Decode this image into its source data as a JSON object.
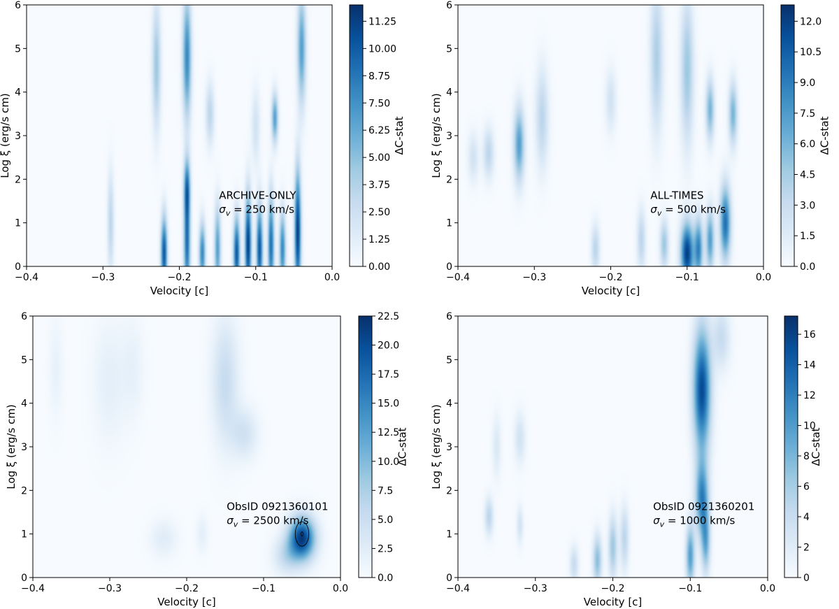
{
  "chart_data": [
    {
      "type": "heatmap",
      "panel": "top-left",
      "xlabel": "Velocity [c]",
      "ylabel": "Log ξ (erg/s cm)",
      "xlim": [
        -0.4,
        0.0
      ],
      "ylim": [
        0,
        6
      ],
      "xticks": [
        "−0.4",
        "−0.3",
        "−0.2",
        "−0.1",
        "0.0"
      ],
      "yticks": [
        "0",
        "1",
        "2",
        "3",
        "4",
        "5",
        "6"
      ],
      "annotation": {
        "line1": "ARCHIVE-ONLY",
        "line2_prefix": "σ",
        "line2_sub": "v",
        "line2_rest": " = 250 km/s"
      },
      "colorbar": {
        "label": "ΔC-stat",
        "min": 0.0,
        "max": 12.0,
        "ticks": [
          "0.00",
          "1.25",
          "2.50",
          "3.75",
          "5.00",
          "6.25",
          "7.50",
          "8.75",
          "10.00",
          "11.25"
        ]
      },
      "features": [
        {
          "v": -0.22,
          "logxi": 0.3,
          "dv": 0.003,
          "dxi": 0.6,
          "amp": 0.9
        },
        {
          "v": -0.19,
          "logxi": 0.5,
          "dv": 0.003,
          "dxi": 0.8,
          "amp": 0.8
        },
        {
          "v": -0.17,
          "logxi": 0.3,
          "dv": 0.003,
          "dxi": 0.5,
          "amp": 0.7
        },
        {
          "v": -0.15,
          "logxi": 0.4,
          "dv": 0.003,
          "dxi": 0.7,
          "amp": 0.6
        },
        {
          "v": -0.125,
          "logxi": 0.3,
          "dv": 0.003,
          "dxi": 0.6,
          "amp": 0.9
        },
        {
          "v": -0.11,
          "logxi": 0.5,
          "dv": 0.003,
          "dxi": 0.8,
          "amp": 1.0
        },
        {
          "v": -0.095,
          "logxi": 0.4,
          "dv": 0.003,
          "dxi": 0.7,
          "amp": 0.9
        },
        {
          "v": -0.08,
          "logxi": 0.5,
          "dv": 0.003,
          "dxi": 0.8,
          "amp": 0.8
        },
        {
          "v": -0.065,
          "logxi": 0.4,
          "dv": 0.003,
          "dxi": 0.6,
          "amp": 0.7
        },
        {
          "v": -0.045,
          "logxi": 0.8,
          "dv": 0.003,
          "dxi": 1.0,
          "amp": 1.0
        },
        {
          "v": -0.19,
          "logxi": 1.8,
          "dv": 0.003,
          "dxi": 0.5,
          "amp": 0.7
        },
        {
          "v": -0.19,
          "logxi": 4.8,
          "dv": 0.004,
          "dxi": 1.0,
          "amp": 0.7
        },
        {
          "v": -0.23,
          "logxi": 4.6,
          "dv": 0.004,
          "dxi": 1.0,
          "amp": 0.4
        },
        {
          "v": -0.075,
          "logxi": 3.4,
          "dv": 0.003,
          "dxi": 0.4,
          "amp": 0.6
        },
        {
          "v": -0.04,
          "logxi": 5.0,
          "dv": 0.004,
          "dxi": 0.9,
          "amp": 0.6
        },
        {
          "v": -0.16,
          "logxi": 3.5,
          "dv": 0.004,
          "dxi": 0.5,
          "amp": 0.3
        },
        {
          "v": -0.29,
          "logxi": 1.0,
          "dv": 0.003,
          "dxi": 0.8,
          "amp": 0.3
        },
        {
          "v": -0.1,
          "logxi": 3.2,
          "dv": 0.004,
          "dxi": 0.6,
          "amp": 0.2
        }
      ]
    },
    {
      "type": "heatmap",
      "panel": "top-right",
      "xlabel": "Velocity [c]",
      "ylabel": "Log ξ (erg/s cm)",
      "xlim": [
        -0.4,
        0.0
      ],
      "ylim": [
        0,
        6
      ],
      "xticks": [
        "−0.4",
        "−0.3",
        "−0.2",
        "−0.1",
        "0.0"
      ],
      "yticks": [
        "0",
        "1",
        "2",
        "3",
        "4",
        "5",
        "6"
      ],
      "annotation": {
        "line1": "ALL-TIMES",
        "line2_prefix": "σ",
        "line2_sub": "v",
        "line2_rest": " = 500 km/s"
      },
      "colorbar": {
        "label": "ΔC-stat",
        "min": 0.0,
        "max": 12.8,
        "ticks": [
          "0.0",
          "1.5",
          "3.0",
          "4.5",
          "6.0",
          "7.5",
          "9.0",
          "10.5",
          "12.0"
        ]
      },
      "features": [
        {
          "v": -0.1,
          "logxi": 0.3,
          "dv": 0.006,
          "dxi": 0.5,
          "amp": 1.0
        },
        {
          "v": -0.085,
          "logxi": 0.4,
          "dv": 0.004,
          "dxi": 0.5,
          "amp": 0.7
        },
        {
          "v": -0.07,
          "logxi": 0.6,
          "dv": 0.004,
          "dxi": 0.5,
          "amp": 0.6
        },
        {
          "v": -0.05,
          "logxi": 1.0,
          "dv": 0.005,
          "dxi": 0.6,
          "amp": 0.8
        },
        {
          "v": -0.13,
          "logxi": 0.5,
          "dv": 0.004,
          "dxi": 0.4,
          "amp": 0.4
        },
        {
          "v": -0.16,
          "logxi": 0.6,
          "dv": 0.004,
          "dxi": 0.5,
          "amp": 0.3
        },
        {
          "v": -0.22,
          "logxi": 0.4,
          "dv": 0.004,
          "dxi": 0.4,
          "amp": 0.3
        },
        {
          "v": -0.32,
          "logxi": 2.8,
          "dv": 0.005,
          "dxi": 0.6,
          "amp": 0.6
        },
        {
          "v": -0.36,
          "logxi": 2.6,
          "dv": 0.005,
          "dxi": 0.4,
          "amp": 0.3
        },
        {
          "v": -0.38,
          "logxi": 2.5,
          "dv": 0.005,
          "dxi": 0.4,
          "amp": 0.2
        },
        {
          "v": -0.29,
          "logxi": 3.4,
          "dv": 0.006,
          "dxi": 0.8,
          "amp": 0.3
        },
        {
          "v": -0.14,
          "logxi": 4.8,
          "dv": 0.006,
          "dxi": 1.2,
          "amp": 0.35
        },
        {
          "v": -0.1,
          "logxi": 4.5,
          "dv": 0.006,
          "dxi": 1.2,
          "amp": 0.4
        },
        {
          "v": -0.07,
          "logxi": 3.6,
          "dv": 0.004,
          "dxi": 0.5,
          "amp": 0.5
        },
        {
          "v": -0.04,
          "logxi": 3.5,
          "dv": 0.004,
          "dxi": 0.5,
          "amp": 0.5
        },
        {
          "v": -0.2,
          "logxi": 3.8,
          "dv": 0.005,
          "dxi": 0.5,
          "amp": 0.2
        }
      ]
    },
    {
      "type": "heatmap",
      "panel": "bottom-left",
      "xlabel": "Velocity [c]",
      "ylabel": "Log ξ (erg/s cm)",
      "xlim": [
        -0.4,
        0.0
      ],
      "ylim": [
        0,
        6
      ],
      "xticks": [
        "−0.4",
        "−0.3",
        "−0.2",
        "−0.1",
        "0.0"
      ],
      "yticks": [
        "0",
        "1",
        "2",
        "3",
        "4",
        "5",
        "6"
      ],
      "annotation": {
        "line1": "ObsID 0921360101",
        "line2_prefix": "σ",
        "line2_sub": "v",
        "line2_rest": " = 2500 km/s"
      },
      "colorbar": {
        "label": "ΔC-stat",
        "min": 0.0,
        "max": 22.5,
        "ticks": [
          "0.0",
          "2.5",
          "5.0",
          "7.5",
          "10.0",
          "12.5",
          "15.0",
          "17.5",
          "20.0",
          "22.5"
        ]
      },
      "contour": {
        "v": -0.05,
        "logxi": 1.0,
        "rv": 0.004,
        "rxi": 0.28
      },
      "features": [
        {
          "v": -0.05,
          "logxi": 0.9,
          "dv": 0.012,
          "dxi": 0.35,
          "amp": 1.0
        },
        {
          "v": -0.07,
          "logxi": 0.5,
          "dv": 0.012,
          "dxi": 0.3,
          "amp": 0.25
        },
        {
          "v": -0.15,
          "logxi": 4.5,
          "dv": 0.012,
          "dxi": 1.0,
          "amp": 0.25
        },
        {
          "v": -0.125,
          "logxi": 3.3,
          "dv": 0.012,
          "dxi": 0.4,
          "amp": 0.2
        },
        {
          "v": -0.3,
          "logxi": 4.5,
          "dv": 0.015,
          "dxi": 1.0,
          "amp": 0.1
        },
        {
          "v": -0.37,
          "logxi": 4.8,
          "dv": 0.006,
          "dxi": 0.8,
          "amp": 0.08
        },
        {
          "v": -0.23,
          "logxi": 0.9,
          "dv": 0.012,
          "dxi": 0.3,
          "amp": 0.12
        },
        {
          "v": -0.18,
          "logxi": 1.0,
          "dv": 0.005,
          "dxi": 0.3,
          "amp": 0.1
        },
        {
          "v": -0.27,
          "logxi": 4.8,
          "dv": 0.01,
          "dxi": 0.8,
          "amp": 0.08
        }
      ]
    },
    {
      "type": "heatmap",
      "panel": "bottom-right",
      "xlabel": "Velocity [c]",
      "ylabel": "Log ξ (erg/s cm)",
      "xlim": [
        -0.4,
        0.0
      ],
      "ylim": [
        0,
        6
      ],
      "xticks": [
        "−0.4",
        "−0.3",
        "−0.2",
        "−0.1",
        "0.0"
      ],
      "yticks": [
        "0",
        "1",
        "2",
        "3",
        "4",
        "5",
        "6"
      ],
      "annotation": {
        "line1": "ObsID 0921360201",
        "line2_prefix": "σ",
        "line2_sub": "v",
        "line2_rest": " = 1000 km/s"
      },
      "colorbar": {
        "label": "ΔC-stat",
        "min": 0,
        "max": 17.2,
        "ticks": [
          "0",
          "2",
          "4",
          "6",
          "8",
          "10",
          "12",
          "14",
          "16"
        ]
      },
      "features": [
        {
          "v": -0.085,
          "logxi": 4.3,
          "dv": 0.008,
          "dxi": 1.0,
          "amp": 0.95
        },
        {
          "v": -0.085,
          "logxi": 1.8,
          "dv": 0.006,
          "dxi": 0.6,
          "amp": 0.7
        },
        {
          "v": -0.1,
          "logxi": 0.5,
          "dv": 0.004,
          "dxi": 0.5,
          "amp": 0.6
        },
        {
          "v": -0.08,
          "logxi": 0.8,
          "dv": 0.004,
          "dxi": 0.5,
          "amp": 0.5
        },
        {
          "v": -0.22,
          "logxi": 0.4,
          "dv": 0.004,
          "dxi": 0.4,
          "amp": 0.45
        },
        {
          "v": -0.2,
          "logxi": 0.7,
          "dv": 0.004,
          "dxi": 0.5,
          "amp": 0.4
        },
        {
          "v": -0.185,
          "logxi": 0.9,
          "dv": 0.004,
          "dxi": 0.5,
          "amp": 0.3
        },
        {
          "v": -0.36,
          "logxi": 1.4,
          "dv": 0.004,
          "dxi": 0.3,
          "amp": 0.3
        },
        {
          "v": -0.32,
          "logxi": 3.2,
          "dv": 0.005,
          "dxi": 0.4,
          "amp": 0.2
        },
        {
          "v": -0.35,
          "logxi": 3.0,
          "dv": 0.004,
          "dxi": 0.5,
          "amp": 0.15
        },
        {
          "v": -0.06,
          "logxi": 5.5,
          "dv": 0.008,
          "dxi": 0.5,
          "amp": 0.25
        },
        {
          "v": -0.32,
          "logxi": 1.2,
          "dv": 0.003,
          "dxi": 0.3,
          "amp": 0.2
        },
        {
          "v": -0.25,
          "logxi": 0.3,
          "dv": 0.004,
          "dxi": 0.3,
          "amp": 0.25
        }
      ]
    }
  ]
}
